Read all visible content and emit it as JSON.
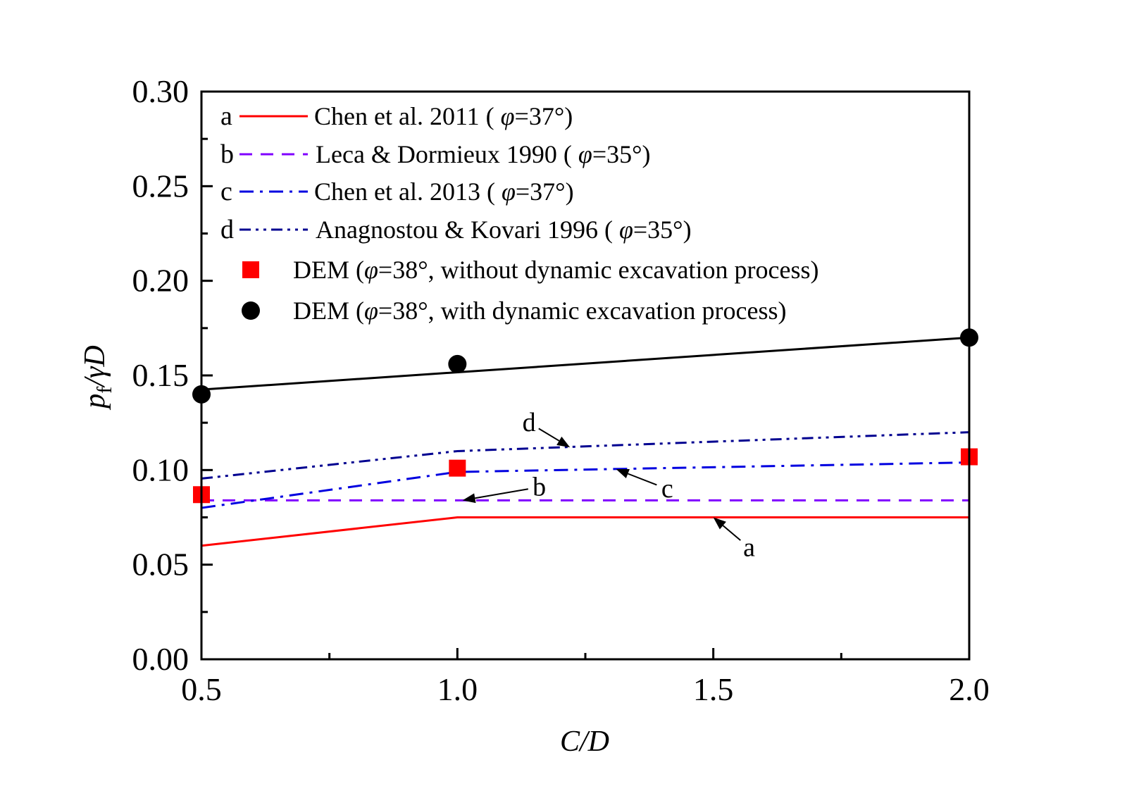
{
  "chart_data": {
    "type": "line",
    "title": "",
    "xlabel": "C/D",
    "ylabel_parts": {
      "p": "p",
      "sub": "f",
      "rest": "/γD"
    },
    "xlim": [
      0.5,
      2.0
    ],
    "ylim": [
      0.0,
      0.3
    ],
    "grid": false,
    "legend_position": "top-left",
    "x_ticks": [
      0.5,
      1.0,
      1.5,
      2.0
    ],
    "x_tick_labels": [
      "0.5",
      "1.0",
      "1.5",
      "2.0"
    ],
    "y_ticks": [
      0.0,
      0.05,
      0.1,
      0.15,
      0.2,
      0.25,
      0.3
    ],
    "y_tick_labels": [
      "0.00",
      "0.05",
      "0.10",
      "0.15",
      "0.20",
      "0.25",
      "0.30"
    ],
    "x": [
      0.5,
      1.0,
      2.0
    ],
    "series": [
      {
        "id": "a",
        "letter": "a",
        "name": "Chen et al. 2011 ( ",
        "phi": "φ",
        "tail": "=37°)",
        "style": "solid",
        "color": "#ff0000",
        "values": [
          0.06,
          0.075,
          0.075
        ]
      },
      {
        "id": "b",
        "letter": "b",
        "name": "Leca & Dormieux 1990 ( ",
        "phi": "φ",
        "tail": "=35°)",
        "style": "dash",
        "color": "#8000ff",
        "values": [
          0.084,
          0.084,
          0.084
        ]
      },
      {
        "id": "c",
        "letter": "c",
        "name": "Chen et al. 2013 ( ",
        "phi": "φ",
        "tail": "=37°)",
        "style": "dashdot",
        "color": "#0000e0",
        "values": [
          0.08,
          0.099,
          0.104
        ]
      },
      {
        "id": "d",
        "letter": "d",
        "name": "Anagnostou & Kovari 1996 ( ",
        "phi": "φ",
        "tail": "=35°)",
        "style": "dashdotdot",
        "color": "#000090",
        "values": [
          0.0955,
          0.11,
          0.12
        ]
      }
    ],
    "scatter": [
      {
        "id": "dem-without",
        "marker": "square",
        "color": "#ff0000",
        "name_pre": "DEM (",
        "phi": "φ",
        "name_post": "=38°, without dynamic excavation process)",
        "values": [
          0.087,
          0.101,
          0.107
        ]
      },
      {
        "id": "dem-with",
        "marker": "circle",
        "color": "#000000",
        "name_pre": "DEM (",
        "phi": "φ",
        "name_post": "=38°, with dynamic excavation process)",
        "values": [
          0.14,
          0.156,
          0.17
        ]
      }
    ],
    "fit_line": {
      "color": "#000000",
      "x": [
        0.5,
        2.0
      ],
      "values": [
        0.1425,
        0.17
      ]
    },
    "annotations": [
      {
        "text": "a",
        "target_x": 1.5,
        "target_y": 0.075,
        "label_x": 1.57,
        "label_y": 0.059
      },
      {
        "text": "b",
        "target_x": 1.01,
        "target_y": 0.084,
        "label_x": 1.16,
        "label_y": 0.091
      },
      {
        "text": "c",
        "target_x": 1.31,
        "target_y": 0.1005,
        "label_x": 1.41,
        "label_y": 0.09
      },
      {
        "text": "d",
        "target_x": 1.22,
        "target_y": 0.112,
        "label_x": 1.14,
        "label_y": 0.125
      }
    ]
  }
}
